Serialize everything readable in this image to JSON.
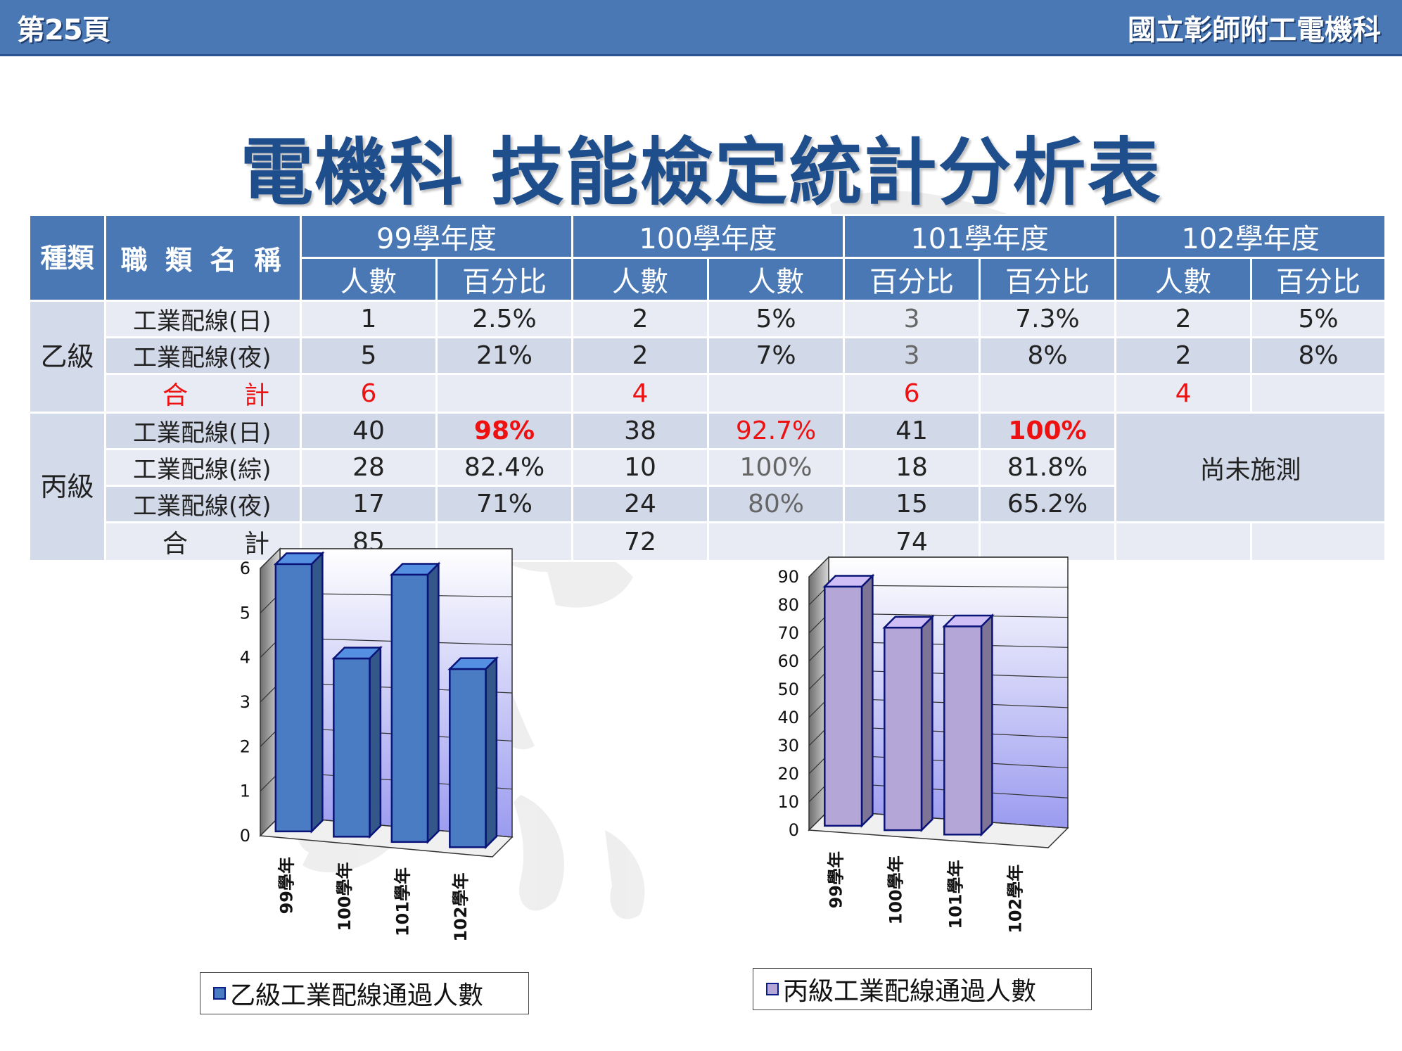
{
  "header": {
    "page_label": "第25頁",
    "department": "國立彰師附工電機科"
  },
  "title": "電機科 技能檢定統計分析表",
  "table": {
    "col_kind": "種類",
    "col_job": "職 類 名 稱",
    "years": [
      "99學年度",
      "100學年度",
      "101學年度",
      "102學年度"
    ],
    "subheaders": [
      "人數",
      "百分比",
      "人數",
      "人數",
      "百分比",
      "百分比",
      "人數",
      "百分比"
    ],
    "group_b": {
      "label": "乙級",
      "rows": [
        {
          "name": "工業配線(日)",
          "cells": [
            "1",
            "2.5%",
            "2",
            "5%",
            "3",
            "7.3%",
            "2",
            "5%"
          ]
        },
        {
          "name": "工業配線(夜)",
          "cells": [
            "5",
            "21%",
            "2",
            "7%",
            "3",
            "8%",
            "2",
            "8%"
          ]
        }
      ],
      "total": {
        "label": "合計",
        "cells": [
          "6",
          "",
          "4",
          "",
          "6",
          "",
          "4",
          ""
        ]
      }
    },
    "group_c": {
      "label": "丙級",
      "rows": [
        {
          "name": "工業配線(日)",
          "cells": [
            "40",
            "98%",
            "38",
            "92.7%",
            "41",
            "100%"
          ]
        },
        {
          "name": "工業配線(綜)",
          "cells": [
            "28",
            "82.4%",
            "10",
            "100%",
            "18",
            "81.8%"
          ]
        },
        {
          "name": "工業配線(夜)",
          "cells": [
            "17",
            "71%",
            "24",
            "80%",
            "15",
            "65.2%"
          ]
        }
      ],
      "not_yet": "尚未施測",
      "total": {
        "label": "合計",
        "cells": [
          "85",
          "",
          "72",
          "",
          "74",
          ""
        ]
      }
    }
  },
  "chart_data": [
    {
      "type": "bar",
      "categories": [
        "99學年",
        "100學年",
        "101學年",
        "102學年"
      ],
      "values": [
        6,
        4,
        6,
        4
      ],
      "yticks": [
        0,
        1,
        2,
        3,
        4,
        5,
        6
      ],
      "ylim": [
        0,
        6
      ],
      "legend": "乙級工業配線通過人數",
      "legend_position": "bottom",
      "bar_color": "#4a7cc4",
      "three_d": true
    },
    {
      "type": "bar",
      "categories": [
        "99學年",
        "100學年",
        "101學年",
        "102學年"
      ],
      "values": [
        85,
        72,
        74,
        null
      ],
      "yticks": [
        0,
        10,
        20,
        30,
        40,
        50,
        60,
        70,
        80,
        90
      ],
      "ylim": [
        0,
        90
      ],
      "legend": "丙級工業配線通過人數",
      "legend_position": "bottom",
      "bar_color": "#b4a6d6",
      "three_d": true
    }
  ]
}
